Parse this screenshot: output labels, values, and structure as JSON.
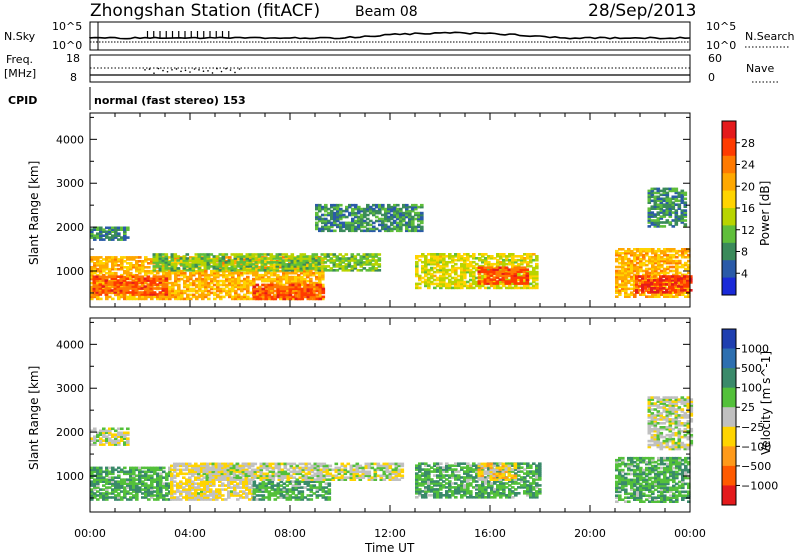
{
  "header": {
    "title": "Zhongshan Station (fitACF)",
    "beam": "Beam 08",
    "date": "28/Sep/2013"
  },
  "panels": {
    "nsky": {
      "label": "N.Sky",
      "ticks": [
        "10^5",
        "10^0"
      ],
      "right_label": "N.Search",
      "right_ticks": [
        "10^5",
        "10^0"
      ]
    },
    "freq": {
      "label_top": "Freq.",
      "label_unit": "[MHz]",
      "ticks": [
        "18",
        "8"
      ],
      "right_label": "Nave",
      "right_ticks": [
        "60",
        "0"
      ]
    },
    "cpid": {
      "label": "CPID",
      "text": "normal (fast stereo) 153"
    }
  },
  "colorbars": {
    "power": {
      "title": "Power [dB]",
      "labels": [
        "28",
        "24",
        "20",
        "16",
        "12",
        "8",
        "4"
      ],
      "colors": [
        "#e41a1c",
        "#ff3b00",
        "#ff7a00",
        "#ffa800",
        "#ffd400",
        "#b8d400",
        "#5fbe3a",
        "#3a8a5a",
        "#2a5aa8",
        "#1a2ad8"
      ]
    },
    "velocity": {
      "title": "Velocity [m s^-1]",
      "labels": [
        "1000",
        "500",
        "100",
        "25",
        "−25",
        "−100",
        "−500",
        "−1000"
      ],
      "colors": [
        "#1f3fb0",
        "#2d6fb0",
        "#3a8a6a",
        "#53c03a",
        "#c0c0c0",
        "#ffd400",
        "#ff9a1a",
        "#ff5a00",
        "#e41a1c"
      ]
    }
  },
  "axes": {
    "xlabel": "Time UT",
    "xticks": [
      "00:00",
      "04:00",
      "08:00",
      "12:00",
      "16:00",
      "20:00",
      "00:00"
    ],
    "ylabel": "Slant Range [km]",
    "yticks": [
      "1000",
      "2000",
      "3000",
      "4000"
    ]
  },
  "chart_data": {
    "type": "heatmap",
    "title": "Zhongshan Station (fitACF)",
    "xlabel": "Time UT",
    "ylabel": "Slant Range [km]",
    "x_range_hours": [
      0,
      24
    ],
    "y_range_km": [
      180,
      4600
    ],
    "panels": [
      {
        "quantity": "Power [dB]",
        "colorbar_range": [
          0,
          32
        ],
        "echo_regions": [
          {
            "t0": 0.0,
            "t1": 9.3,
            "r0": 350,
            "r1": 1300,
            "value": 20
          },
          {
            "t0": 0.1,
            "t1": 3.0,
            "r0": 450,
            "r1": 900,
            "value": 26
          },
          {
            "t0": 6.5,
            "t1": 9.3,
            "r0": 350,
            "r1": 700,
            "value": 26
          },
          {
            "t0": 2.5,
            "t1": 11.5,
            "r0": 1000,
            "r1": 1400,
            "value": 12
          },
          {
            "t0": 0.0,
            "t1": 1.5,
            "r0": 1700,
            "r1": 2000,
            "value": 8
          },
          {
            "t0": 9.0,
            "t1": 13.2,
            "r0": 1900,
            "r1": 2500,
            "value": 8
          },
          {
            "t0": 13.0,
            "t1": 17.8,
            "r0": 600,
            "r1": 1400,
            "value": 16
          },
          {
            "t0": 15.5,
            "t1": 17.5,
            "r0": 700,
            "r1": 1100,
            "value": 26
          },
          {
            "t0": 21.0,
            "t1": 24.0,
            "r0": 400,
            "r1": 1500,
            "value": 20
          },
          {
            "t0": 21.8,
            "t1": 24.0,
            "r0": 500,
            "r1": 900,
            "value": 28
          },
          {
            "t0": 22.3,
            "t1": 23.8,
            "r0": 2000,
            "r1": 2900,
            "value": 8
          }
        ]
      },
      {
        "quantity": "Velocity [m s^-1]",
        "colorbar_range": [
          -1000,
          1000
        ],
        "echo_regions": [
          {
            "t0": 0.0,
            "t1": 3.2,
            "r0": 450,
            "r1": 1200,
            "value": 300
          },
          {
            "t0": 3.2,
            "t1": 6.5,
            "r0": 450,
            "r1": 1300,
            "value": -100
          },
          {
            "t0": 6.5,
            "t1": 9.5,
            "r0": 450,
            "r1": 900,
            "value": 300
          },
          {
            "t0": 4.5,
            "t1": 12.5,
            "r0": 900,
            "r1": 1300,
            "value": 0
          },
          {
            "t0": 0.0,
            "t1": 1.5,
            "r0": 1700,
            "r1": 2100,
            "value": 0
          },
          {
            "t0": 13.0,
            "t1": 18.0,
            "r0": 500,
            "r1": 1300,
            "value": 300
          },
          {
            "t0": 15.5,
            "t1": 17.0,
            "r0": 900,
            "r1": 1300,
            "value": -200
          },
          {
            "t0": 21.0,
            "t1": 24.0,
            "r0": 400,
            "r1": 1400,
            "value": 300
          },
          {
            "t0": 22.3,
            "t1": 24.0,
            "r0": 1600,
            "r1": 2800,
            "value": 0
          }
        ]
      }
    ]
  }
}
